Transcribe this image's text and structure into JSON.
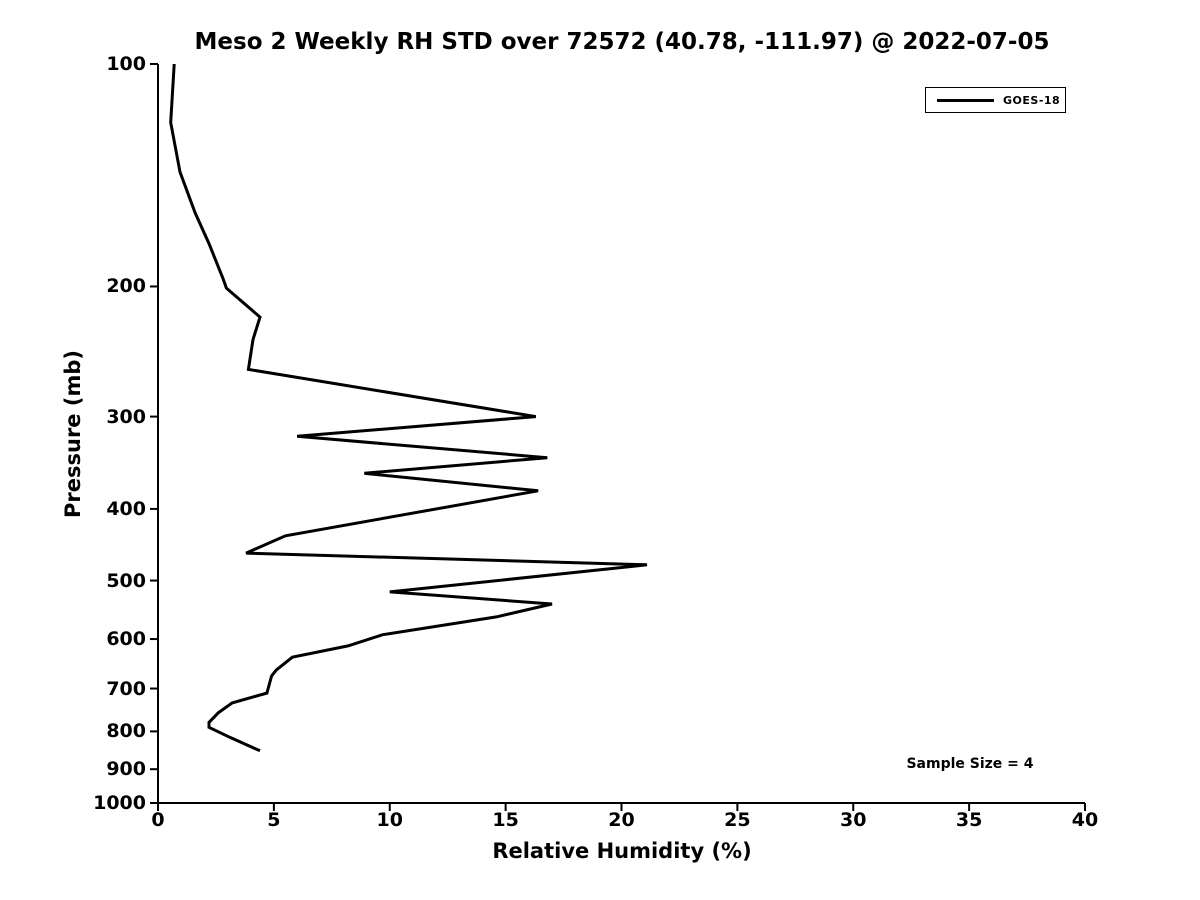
{
  "chart": {
    "title": "Meso 2 Weekly RH STD over 72572 (40.78, -111.97) @ 2022-07-05",
    "xlabel": "Relative Humidity (%)",
    "ylabel": "Pressure (mb)",
    "legend": {
      "label": "GOES-18"
    },
    "annotation": "Sample Size = 4",
    "colors": {
      "line": "#000000",
      "text": "#000000",
      "background": "#ffffff"
    }
  },
  "chart_data": {
    "type": "line",
    "title": "Meso 2 Weekly RH STD over 72572 (40.78, -111.97) @ 2022-07-05",
    "xlabel": "Relative Humidity (%)",
    "ylabel": "Pressure (mb)",
    "xlim": [
      0,
      40
    ],
    "ylim": [
      1000,
      100
    ],
    "yscale": "log",
    "y_inverted": true,
    "grid": false,
    "legend_position": "upper right",
    "xticks": [
      0,
      5,
      10,
      15,
      20,
      25,
      30,
      35,
      40
    ],
    "yticks": [
      100,
      200,
      300,
      400,
      500,
      600,
      700,
      800,
      900,
      1000
    ],
    "series": [
      {
        "name": "GOES-18",
        "color": "#000000",
        "points_pressure_rh": [
          [
            100,
            0.7
          ],
          [
            120,
            0.55
          ],
          [
            140,
            0.95
          ],
          [
            159,
            1.6
          ],
          [
            175,
            2.2
          ],
          [
            195,
            2.8
          ],
          [
            201,
            2.95
          ],
          [
            220,
            4.4
          ],
          [
            236,
            4.1
          ],
          [
            259,
            3.9
          ],
          [
            300,
            16.3
          ],
          [
            319,
            6.0
          ],
          [
            341,
            16.8
          ],
          [
            358,
            8.9
          ],
          [
            378,
            16.4
          ],
          [
            435,
            5.5
          ],
          [
            459,
            3.8
          ],
          [
            476,
            21.1
          ],
          [
            518,
            10.0
          ],
          [
            538,
            17.0
          ],
          [
            560,
            14.6
          ],
          [
            592,
            9.7
          ],
          [
            613,
            8.2
          ],
          [
            635,
            5.8
          ],
          [
            661,
            5.1
          ],
          [
            673,
            4.9
          ],
          [
            710,
            4.7
          ],
          [
            732,
            3.2
          ],
          [
            755,
            2.6
          ],
          [
            778,
            2.2
          ],
          [
            790,
            2.2
          ],
          [
            815,
            3.1
          ],
          [
            850,
            4.4
          ]
        ]
      }
    ],
    "annotations": [
      {
        "text": "Sample Size = 4",
        "position": "lower right"
      }
    ]
  }
}
